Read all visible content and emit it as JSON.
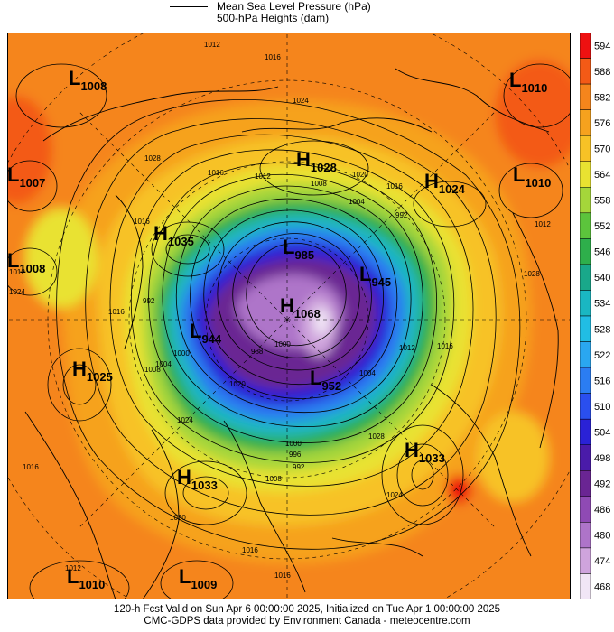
{
  "legend": {
    "line_label": "Mean Sea Level Pressure (hPa)",
    "fill_label": "500-hPa Heights (dam)"
  },
  "scale": {
    "levels": [
      594,
      588,
      582,
      576,
      570,
      564,
      558,
      552,
      546,
      540,
      534,
      528,
      522,
      516,
      510,
      504,
      498,
      492,
      486,
      480,
      474,
      468
    ],
    "colors": {
      "594": "#ee1111",
      "588": "#f35a16",
      "582": "#f5851c",
      "576": "#f6a21e",
      "570": "#f7c226",
      "564": "#e9e231",
      "558": "#a5d63a",
      "552": "#5cc43c",
      "546": "#2eaf4b",
      "540": "#19a88a",
      "534": "#1ab7c2",
      "528": "#21bde4",
      "522": "#2aa7f0",
      "516": "#2b7df2",
      "510": "#2a4fef",
      "504": "#2a22d6",
      "498": "#4a1ba9",
      "492": "#6a2593",
      "486": "#8f4ab4",
      "480": "#ae74c9",
      "474": "#cfa4dd",
      "468": "#f1e6f6"
    }
  },
  "pressure_systems": [
    {
      "type": "L",
      "value": "1008"
    },
    {
      "type": "L",
      "value": "1010"
    },
    {
      "type": "L",
      "value": "1007"
    },
    {
      "type": "H",
      "value": "1028"
    },
    {
      "type": "H",
      "value": "1024"
    },
    {
      "type": "L",
      "value": "1010"
    },
    {
      "type": "H",
      "value": "1035"
    },
    {
      "type": "L",
      "value": "1008"
    },
    {
      "type": "L",
      "value": "985"
    },
    {
      "type": "L",
      "value": "945"
    },
    {
      "type": "H",
      "value": "1068"
    },
    {
      "type": "L",
      "value": "944"
    },
    {
      "type": "H",
      "value": "1025"
    },
    {
      "type": "L",
      "value": "952"
    },
    {
      "type": "H",
      "value": "1033"
    },
    {
      "type": "H",
      "value": "1033"
    },
    {
      "type": "L",
      "value": "1010"
    },
    {
      "type": "L",
      "value": "1009"
    }
  ],
  "isobar_labels": [
    "1012",
    "1016",
    "1024",
    "1028",
    "1016",
    "1012",
    "1020",
    "1016",
    "1008",
    "1004",
    "992",
    "1016",
    "1012",
    "1024",
    "1000",
    "1004",
    "1000",
    "988",
    "1012",
    "1016",
    "1004",
    "1020",
    "1024",
    "1028",
    "1024",
    "1016",
    "1008",
    "1000",
    "996",
    "992",
    "1016",
    "1012",
    "1012",
    "1016",
    "1020",
    "1016",
    "992",
    "1028",
    "1008"
  ],
  "footer": {
    "line1": "120-h Fcst Valid on Sun Apr  6 00:00:00 2025, Initialized on Tue Apr  1 00:00:00 2025",
    "line2": "CMC-GDPS data provided by Environment Canada - meteocentre.com"
  }
}
